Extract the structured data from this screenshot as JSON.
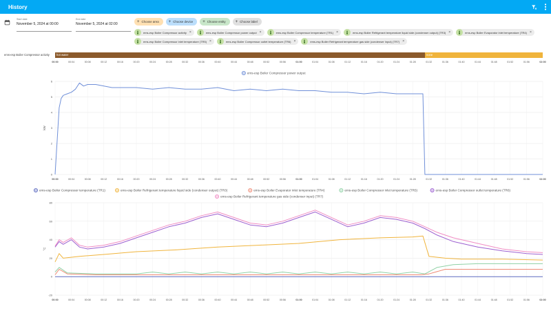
{
  "header": {
    "title": "History",
    "filter_icon": "filter-remove-icon",
    "menu_icon": "dots-vertical-icon"
  },
  "filters": {
    "start_label": "Start date",
    "start_value": "November 5, 2024 at 00:00",
    "end_label": "End date",
    "end_value": "November 5, 2024 at 02:00",
    "buttons": [
      {
        "label": "Choose area",
        "bg": "#ffe0b2"
      },
      {
        "label": "Choose device",
        "bg": "#bbdefb"
      },
      {
        "label": "Choose entity",
        "bg": "#c8e6c9"
      },
      {
        "label": "Choose label",
        "bg": "#e0e0e0"
      }
    ],
    "chips": [
      "ems-esp Boiler Compressor activity",
      "ems-esp Boiler Compressor power output",
      "ems-esp Boiler Compressor temperature (TR1)",
      "ems-esp Boiler Refrigerant temperature liquid side (condenser output) (TR3)",
      "ems-esp Boiler Evaporator inlet temperature (TR4)",
      "ems-esp Boiler Compressor inlet temperature (TR5)",
      "ems-esp Boiler Compressor outlet temperature (TR6)",
      "ems-esp Boiler Refrigerant temperature gas side (condenser input) (TR7)"
    ]
  },
  "time_ticks": [
    "00:00",
    "00:04",
    "00:08",
    "00:12",
    "00:16",
    "00:20",
    "00:24",
    "00:28",
    "00:32",
    "00:36",
    "00:40",
    "00:44",
    "00:48",
    "00:52",
    "00:56",
    "01:00",
    "01:04",
    "01:08",
    "01:12",
    "01:16",
    "01:20",
    "01:24",
    "01:28",
    "01:32",
    "01:36",
    "01:40",
    "01:44",
    "01:48",
    "01:52",
    "01:56",
    "02:00"
  ],
  "timeline": {
    "row_label": "ems-esp Boiler Compressor activity",
    "segments": [
      {
        "label": "hot water",
        "from_min": 0,
        "to_min": 91,
        "color": "#8b5a2b"
      },
      {
        "label": "none",
        "from_min": 91,
        "to_min": 120,
        "color": "#f0b43c"
      }
    ]
  },
  "chart_data": [
    {
      "type": "line",
      "ylabel": "kW",
      "ylim": [
        0,
        6
      ],
      "yticks": [
        0,
        1,
        2,
        3,
        4,
        5,
        6
      ],
      "series": [
        {
          "name": "ems-esp Boiler Compressor power output",
          "color": "#6f8fd8",
          "x": [
            0,
            1,
            1.5,
            2,
            3,
            4,
            5,
            6,
            7,
            8,
            10,
            12,
            14,
            16,
            20,
            24,
            28,
            32,
            36,
            40,
            44,
            48,
            52,
            56,
            60,
            64,
            68,
            72,
            76,
            80,
            84,
            88,
            90.5,
            91,
            120
          ],
          "y": [
            0,
            4.3,
            4.9,
            5.1,
            5.2,
            5.3,
            5.5,
            5.9,
            5.7,
            5.8,
            5.8,
            5.7,
            5.6,
            5.6,
            5.6,
            5.5,
            5.6,
            5.5,
            5.5,
            5.6,
            5.4,
            5.5,
            5.4,
            5.5,
            5.4,
            5.4,
            5.3,
            5.3,
            5.2,
            5.3,
            5.2,
            5.2,
            5.2,
            0,
            0
          ]
        }
      ]
    },
    {
      "type": "line",
      "ylabel": "°C",
      "ylim": [
        0,
        80
      ],
      "yticks": [
        -20,
        0,
        20,
        40,
        60,
        80
      ],
      "series": [
        {
          "name": "ems-esp Boiler Compressor temperature (TR1)",
          "color": "#5c6bc0",
          "x": [
            0,
            91,
            120
          ],
          "y": [
            0,
            0,
            0
          ]
        },
        {
          "name": "ems-esp Boiler Refrigerant temperature liquid side (condenser output) (TR3)",
          "color": "#f0b43c",
          "x": [
            0,
            1,
            2,
            6,
            12,
            20,
            30,
            40,
            50,
            60,
            70,
            80,
            88,
            90.5,
            92,
            96,
            100,
            110,
            120
          ],
          "y": [
            16,
            25,
            20,
            22,
            24,
            27,
            29,
            32,
            34,
            36,
            40,
            42,
            43,
            44,
            22,
            20,
            19,
            19,
            18
          ]
        },
        {
          "name": "ems-esp Boiler Evaporator inlet temperature (TR4)",
          "color": "#ef8a74",
          "x": [
            0,
            1,
            3,
            10,
            20,
            30,
            40,
            50,
            60,
            70,
            80,
            90,
            92,
            96,
            100,
            110,
            120
          ],
          "y": [
            2,
            8,
            3,
            2,
            2,
            2,
            2,
            2,
            2,
            2,
            2,
            2,
            3,
            8,
            8,
            8,
            8
          ]
        },
        {
          "name": "ems-esp Boiler Compressor inlet temperature (TR5)",
          "color": "#8fd1a5",
          "x": [
            0,
            1,
            3,
            10,
            20,
            24,
            28,
            32,
            36,
            40,
            44,
            48,
            52,
            56,
            60,
            64,
            68,
            72,
            76,
            80,
            84,
            88,
            91,
            94,
            98,
            104,
            110,
            120
          ],
          "y": [
            5,
            10,
            4,
            3,
            3,
            5,
            3,
            5,
            3,
            5,
            3,
            5,
            3,
            5,
            3,
            5,
            3,
            5,
            3,
            5,
            3,
            5,
            3,
            10,
            13,
            14,
            14,
            14
          ]
        },
        {
          "name": "ems-esp Boiler Compressor outlet temperature (TR6)",
          "color": "#9c5fd0",
          "x": [
            0,
            1,
            2,
            4,
            6,
            8,
            12,
            16,
            20,
            24,
            28,
            32,
            36,
            40,
            44,
            48,
            52,
            56,
            60,
            64,
            68,
            72,
            76,
            80,
            84,
            88,
            91,
            94,
            98,
            104,
            110,
            116,
            120
          ],
          "y": [
            32,
            38,
            35,
            40,
            32,
            30,
            32,
            36,
            42,
            48,
            54,
            58,
            64,
            68,
            62,
            56,
            54,
            58,
            64,
            70,
            62,
            54,
            58,
            64,
            62,
            58,
            52,
            45,
            38,
            32,
            28,
            25,
            24
          ]
        },
        {
          "name": "ems-esp Boiler Refrigerant temperature gas side (condenser input) (TR7)",
          "color": "#f08cc4",
          "x": [
            0,
            1,
            2,
            4,
            6,
            8,
            12,
            16,
            20,
            24,
            28,
            32,
            36,
            40,
            44,
            48,
            52,
            56,
            60,
            64,
            68,
            72,
            76,
            80,
            84,
            88,
            91,
            94,
            98,
            104,
            110,
            116,
            120
          ],
          "y": [
            33,
            40,
            37,
            42,
            34,
            32,
            34,
            38,
            44,
            50,
            56,
            60,
            66,
            70,
            64,
            58,
            56,
            60,
            66,
            72,
            64,
            56,
            60,
            66,
            64,
            60,
            54,
            48,
            42,
            36,
            30,
            27,
            26
          ]
        }
      ]
    }
  ]
}
